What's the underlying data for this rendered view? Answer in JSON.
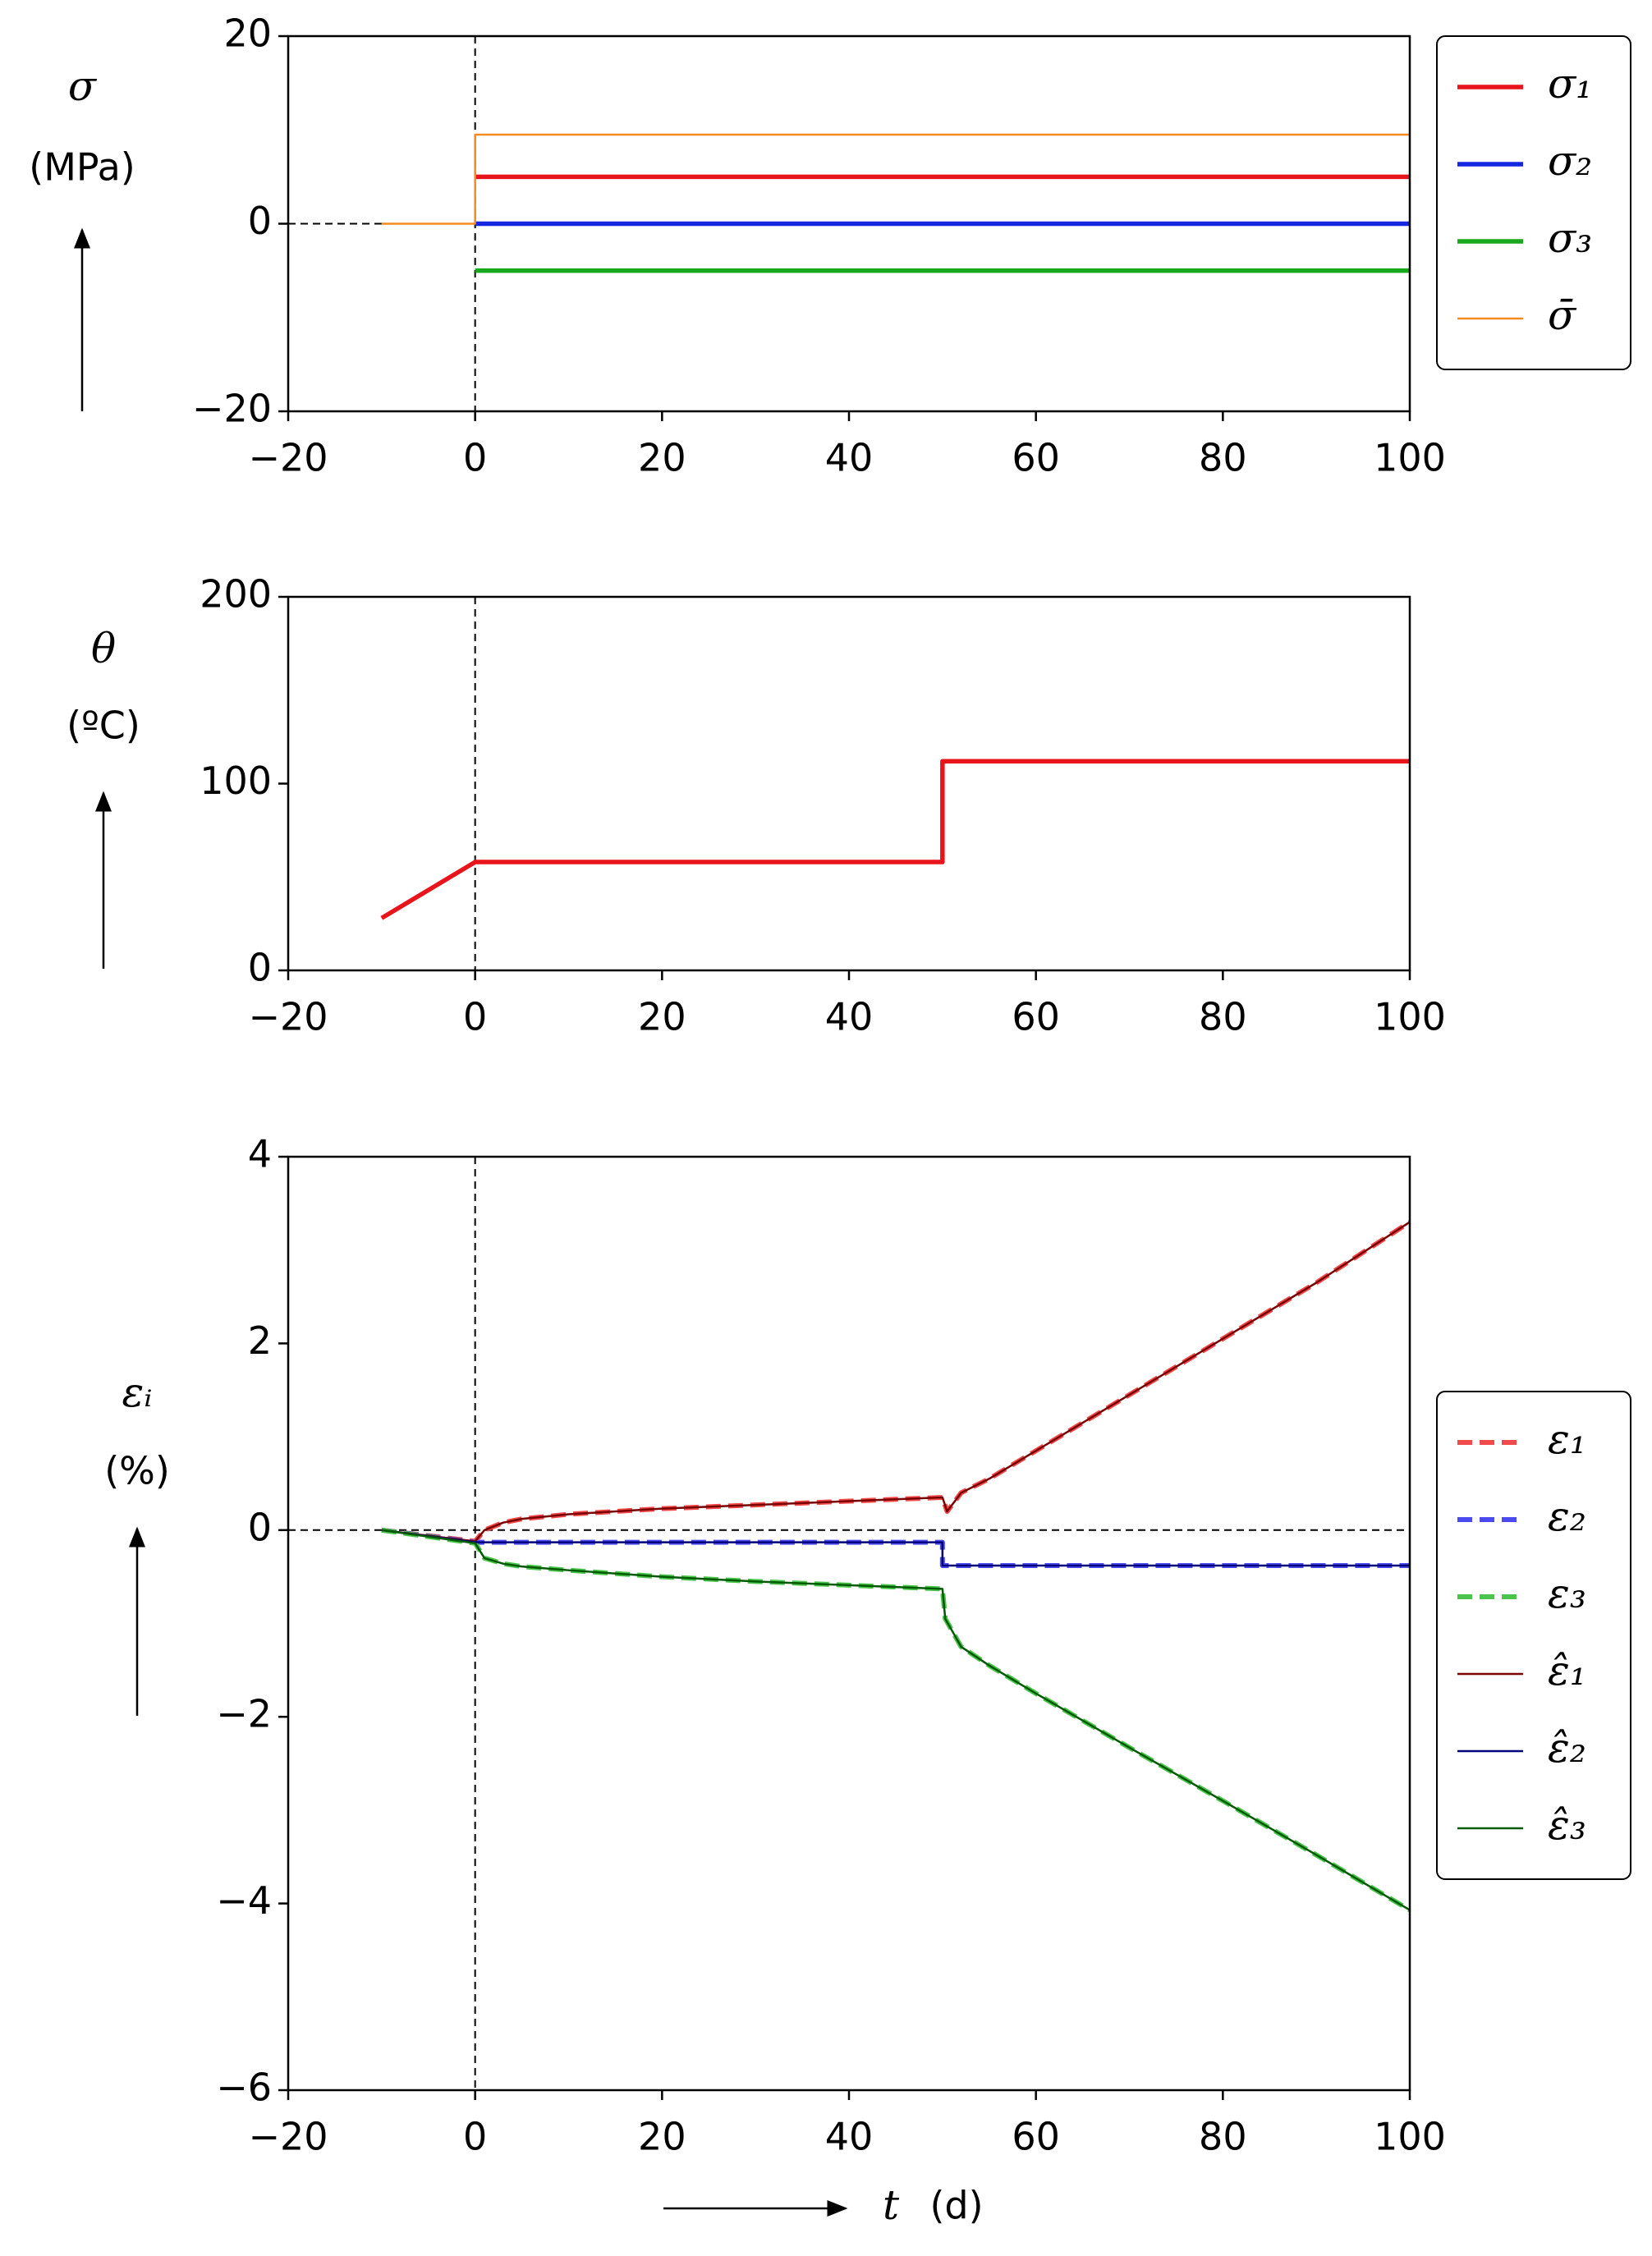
{
  "chart_data": [
    {
      "type": "line",
      "ylabel": "σ",
      "yunit": "(MPa)",
      "xlim": [
        -20,
        100
      ],
      "xticks": [
        {
          "value": -20,
          "label": "−20"
        },
        0,
        20,
        40,
        60,
        80,
        100
      ],
      "ylim": [
        -20,
        20
      ],
      "yticks": [
        {
          "value": -20,
          "label": "−20"
        },
        0,
        20
      ],
      "vline": 0,
      "hline": {
        "y": 0,
        "x": [
          -20,
          -10
        ]
      },
      "legend": "right",
      "series": [
        {
          "name": "σ₁",
          "color": "#e8141b",
          "style": "solid",
          "x": [
            0,
            100
          ],
          "values": [
            5,
            5
          ]
        },
        {
          "name": "σ₂",
          "color": "#1426e0",
          "style": "solid",
          "x": [
            0,
            100
          ],
          "values": [
            0,
            0
          ]
        },
        {
          "name": "σ₃",
          "color": "#18a81c",
          "style": "solid",
          "x": [
            0,
            100
          ],
          "values": [
            -5,
            -5
          ]
        },
        {
          "name": "σ̄",
          "color": "#f58a1f",
          "style": "solid",
          "x": [
            -10,
            0,
            0,
            100
          ],
          "values": [
            0,
            0,
            9.5,
            9.5
          ]
        }
      ]
    },
    {
      "type": "line",
      "ylabel": "θ",
      "yunit": "(ºC)",
      "xlim": [
        -20,
        100
      ],
      "xticks": [
        {
          "value": -20,
          "label": "−20"
        },
        0,
        20,
        40,
        60,
        80,
        100
      ],
      "ylim": [
        0,
        200
      ],
      "yticks": [
        0,
        100,
        200
      ],
      "vline": 0,
      "series": [
        {
          "color": "#e8141b",
          "style": "solid",
          "x": [
            -10,
            0,
            50,
            50,
            100
          ],
          "values": [
            28,
            58,
            58,
            112,
            112
          ]
        }
      ]
    },
    {
      "type": "line",
      "ylabel": "εᵢ",
      "yunit": "(%)",
      "xlabel": "t",
      "xunit": "(d)",
      "xlim": [
        -20,
        100
      ],
      "xticks": [
        {
          "value": -20,
          "label": "−20"
        },
        0,
        20,
        40,
        60,
        80,
        100
      ],
      "ylim": [
        -6,
        4
      ],
      "yticks": [
        {
          "value": -6,
          "label": "−6"
        },
        {
          "value": -4,
          "label": "−4"
        },
        {
          "value": -2,
          "label": "−2"
        },
        0,
        2,
        4
      ],
      "vline": 0,
      "hline": {
        "y": 0,
        "x": [
          -20,
          100
        ]
      },
      "legend": "right",
      "series": [
        {
          "name": "ε₁",
          "color": "#f04a4a",
          "style": "dashed",
          "x": [
            -10,
            -5,
            0,
            1,
            3,
            5,
            10,
            20,
            30,
            40,
            50,
            50.5,
            52,
            55,
            60,
            70,
            80,
            90,
            100
          ],
          "values": [
            0,
            -0.06,
            -0.12,
            0.0,
            0.08,
            0.12,
            0.17,
            0.23,
            0.27,
            0.31,
            0.35,
            0.2,
            0.4,
            0.55,
            0.85,
            1.45,
            2.05,
            2.65,
            3.3
          ]
        },
        {
          "name": "ε₂",
          "color": "#4a4af0",
          "style": "dashed",
          "x": [
            -10,
            0,
            50,
            50,
            100
          ],
          "values": [
            0,
            -0.13,
            -0.13,
            -0.38,
            -0.38
          ]
        },
        {
          "name": "ε₃",
          "color": "#4ac44a",
          "style": "dashed",
          "x": [
            -10,
            -5,
            0,
            1,
            3,
            5,
            10,
            20,
            30,
            40,
            50,
            50.3,
            52,
            55,
            60,
            70,
            80,
            90,
            100
          ],
          "values": [
            0,
            -0.07,
            -0.14,
            -0.3,
            -0.36,
            -0.39,
            -0.43,
            -0.5,
            -0.55,
            -0.59,
            -0.63,
            -0.95,
            -1.25,
            -1.45,
            -1.75,
            -2.33,
            -2.9,
            -3.48,
            -4.07
          ]
        },
        {
          "name": "ε̂₁",
          "color": "#7a0000",
          "style": "solid",
          "x": [
            -10,
            -5,
            0,
            1,
            3,
            5,
            10,
            20,
            30,
            40,
            50,
            50.5,
            52,
            55,
            60,
            70,
            80,
            90,
            100
          ],
          "values": [
            0,
            -0.06,
            -0.12,
            0.0,
            0.08,
            0.12,
            0.17,
            0.23,
            0.27,
            0.31,
            0.35,
            0.2,
            0.4,
            0.55,
            0.85,
            1.45,
            2.05,
            2.65,
            3.3
          ]
        },
        {
          "name": "ε̂₂",
          "color": "#00007a",
          "style": "solid",
          "x": [
            -10,
            0,
            50,
            50,
            100
          ],
          "values": [
            0,
            -0.13,
            -0.13,
            -0.38,
            -0.38
          ]
        },
        {
          "name": "ε̂₃",
          "color": "#005a00",
          "style": "solid",
          "x": [
            -10,
            -5,
            0,
            1,
            3,
            5,
            10,
            20,
            30,
            40,
            50,
            50.3,
            52,
            55,
            60,
            70,
            80,
            90,
            100
          ],
          "values": [
            0,
            -0.07,
            -0.14,
            -0.3,
            -0.36,
            -0.39,
            -0.43,
            -0.5,
            -0.55,
            -0.59,
            -0.63,
            -0.95,
            -1.25,
            -1.45,
            -1.75,
            -2.33,
            -2.9,
            -3.48,
            -4.07
          ]
        }
      ]
    }
  ]
}
